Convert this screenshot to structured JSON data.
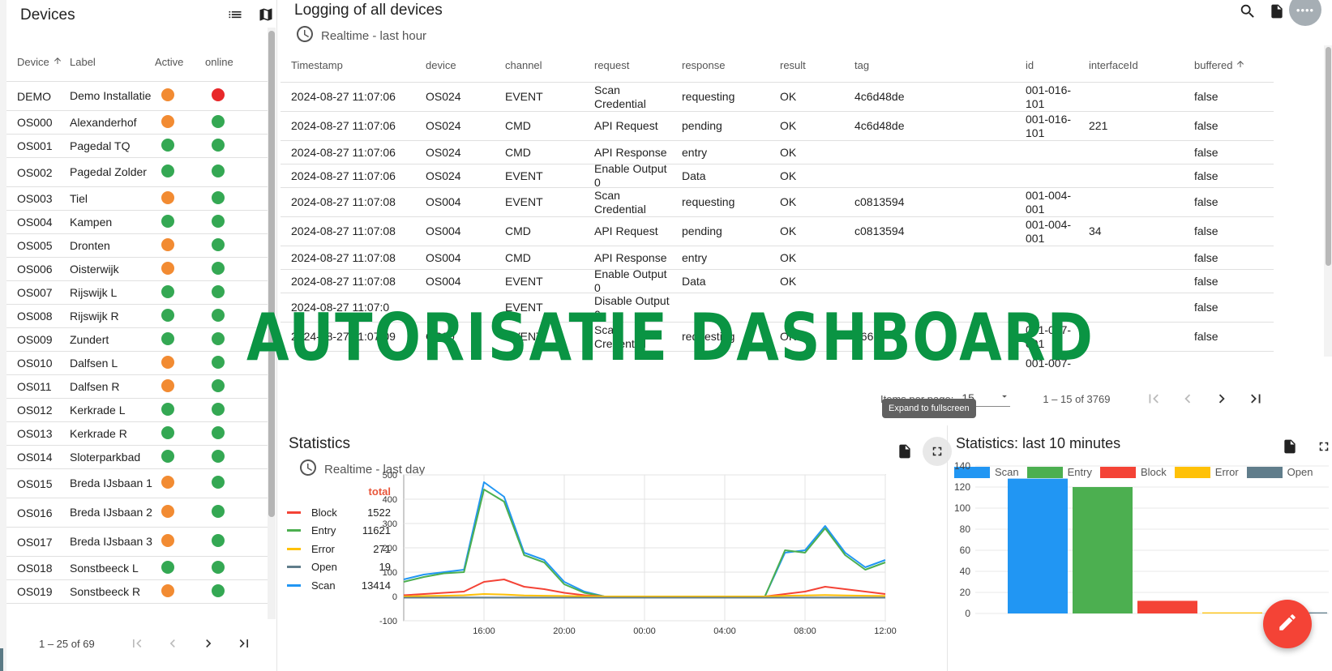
{
  "colors": {
    "orange": "#f28b32",
    "green": "#34a853",
    "red": "#e8282a",
    "scan": "#2196f3",
    "entry": "#4caf50",
    "block": "#f44336",
    "error": "#ffc107",
    "open": "#607d8b",
    "watermark": "#0a9443"
  },
  "devices": {
    "title": "Devices",
    "columns": {
      "device": "Device",
      "label": "Label",
      "active": "Active",
      "online": "online"
    },
    "rows": [
      {
        "device": "DEMO",
        "label": "Demo Installatie",
        "active": "orange",
        "online": "red"
      },
      {
        "device": "OS000",
        "label": "Alexanderhof",
        "active": "orange",
        "online": "green"
      },
      {
        "device": "OS001",
        "label": "Pagedal TQ",
        "active": "green",
        "online": "green"
      },
      {
        "device": "OS002",
        "label": "Pagedal Zolder",
        "active": "green",
        "online": "green"
      },
      {
        "device": "OS003",
        "label": "Tiel",
        "active": "orange",
        "online": "green"
      },
      {
        "device": "OS004",
        "label": "Kampen",
        "active": "green",
        "online": "green"
      },
      {
        "device": "OS005",
        "label": "Dronten",
        "active": "orange",
        "online": "green"
      },
      {
        "device": "OS006",
        "label": "Oisterwijk",
        "active": "orange",
        "online": "green"
      },
      {
        "device": "OS007",
        "label": "Rijswijk L",
        "active": "green",
        "online": "green"
      },
      {
        "device": "OS008",
        "label": "Rijswijk R",
        "active": "green",
        "online": "green"
      },
      {
        "device": "OS009",
        "label": "Zundert",
        "active": "green",
        "online": "green"
      },
      {
        "device": "OS010",
        "label": "Dalfsen L",
        "active": "orange",
        "online": "green"
      },
      {
        "device": "OS011",
        "label": "Dalfsen R",
        "active": "orange",
        "online": "green"
      },
      {
        "device": "OS012",
        "label": "Kerkrade L",
        "active": "green",
        "online": "green"
      },
      {
        "device": "OS013",
        "label": "Kerkrade R",
        "active": "green",
        "online": "green"
      },
      {
        "device": "OS014",
        "label": "Sloterparkbad",
        "active": "green",
        "online": "green"
      },
      {
        "device": "OS015",
        "label": "Breda IJsbaan 1",
        "active": "orange",
        "online": "green"
      },
      {
        "device": "OS016",
        "label": "Breda IJsbaan 2",
        "active": "orange",
        "online": "green"
      },
      {
        "device": "OS017",
        "label": "Breda IJsbaan 3",
        "active": "orange",
        "online": "green"
      },
      {
        "device": "OS018",
        "label": "Sonstbeeck L",
        "active": "green",
        "online": "green"
      },
      {
        "device": "OS019",
        "label": "Sonstbeeck R",
        "active": "orange",
        "online": "green"
      }
    ],
    "pager": "1 – 25 of 69"
  },
  "logging": {
    "title": "Logging of all devices",
    "realtime": "Realtime - last hour",
    "columns": {
      "timestamp": "Timestamp",
      "device": "device",
      "channel": "channel",
      "request": "request",
      "response": "response",
      "result": "result",
      "tag": "tag",
      "id": "id",
      "interfaceId": "interfaceId",
      "buffered": "buffered"
    },
    "rows": [
      {
        "timestamp": "2024-08-27 11:07:06",
        "device": "OS024",
        "channel": "EVENT",
        "request": "Scan Credential",
        "response": "requesting",
        "result": "OK",
        "tag": "4c6d48de",
        "id": "001-016-101",
        "interfaceId": "",
        "buffered": "false"
      },
      {
        "timestamp": "2024-08-27 11:07:06",
        "device": "OS024",
        "channel": "CMD",
        "request": "API Request",
        "response": "pending",
        "result": "OK",
        "tag": "4c6d48de",
        "id": "001-016-101",
        "interfaceId": "221",
        "buffered": "false"
      },
      {
        "timestamp": "2024-08-27 11:07:06",
        "device": "OS024",
        "channel": "CMD",
        "request": "API Response",
        "response": "entry",
        "result": "OK",
        "tag": "",
        "id": "",
        "interfaceId": "",
        "buffered": "false"
      },
      {
        "timestamp": "2024-08-27 11:07:06",
        "device": "OS024",
        "channel": "EVENT",
        "request": "Enable Output 0",
        "response": "Data",
        "result": "OK",
        "tag": "",
        "id": "",
        "interfaceId": "",
        "buffered": "false"
      },
      {
        "timestamp": "2024-08-27 11:07:08",
        "device": "OS004",
        "channel": "EVENT",
        "request": "Scan Credential",
        "response": "requesting",
        "result": "OK",
        "tag": "c0813594",
        "id": "001-004-001",
        "interfaceId": "",
        "buffered": "false"
      },
      {
        "timestamp": "2024-08-27 11:07:08",
        "device": "OS004",
        "channel": "CMD",
        "request": "API Request",
        "response": "pending",
        "result": "OK",
        "tag": "c0813594",
        "id": "001-004-001",
        "interfaceId": "34",
        "buffered": "false"
      },
      {
        "timestamp": "2024-08-27 11:07:08",
        "device": "OS004",
        "channel": "CMD",
        "request": "API Response",
        "response": "entry",
        "result": "OK",
        "tag": "",
        "id": "",
        "interfaceId": "",
        "buffered": "false"
      },
      {
        "timestamp": "2024-08-27 11:07:08",
        "device": "OS004",
        "channel": "EVENT",
        "request": "Enable Output 0",
        "response": "Data",
        "result": "OK",
        "tag": "",
        "id": "",
        "interfaceId": "",
        "buffered": "false"
      },
      {
        "timestamp": "2024-08-27 11:07:0",
        "device": "",
        "channel": "EVENT",
        "request": "Disable Output 0",
        "response": "",
        "result": "",
        "tag": "",
        "id": "",
        "interfaceId": "",
        "buffered": "false"
      },
      {
        "timestamp": "2024-08-27 11:07:09",
        "device": "OS00",
        "channel": "EVENT",
        "request": "Scan Credential",
        "response": "requesting",
        "result": "OK",
        "tag": "766",
        "id": "001-007-001",
        "interfaceId": "",
        "buffered": "false"
      },
      {
        "timestamp": "",
        "device": "",
        "channel": "",
        "request": "",
        "response": "",
        "result": "",
        "tag": "",
        "id": "001-007-",
        "interfaceId": "",
        "buffered": ""
      }
    ],
    "items_per_page_label": "Items per page:",
    "items_per_page": "15",
    "range": "1 – 15 of 3769",
    "tooltip": "Expand to fullscreen"
  },
  "statistics": {
    "title": "Statistics",
    "realtime": "Realtime - last day",
    "total_label": "total",
    "legend": [
      {
        "name": "Block",
        "total": "1522",
        "color": "#f44336"
      },
      {
        "name": "Entry",
        "total": "11621",
        "color": "#4caf50"
      },
      {
        "name": "Error",
        "total": "271",
        "color": "#ffc107"
      },
      {
        "name": "Open",
        "total": "19",
        "color": "#607d8b"
      },
      {
        "name": "Scan",
        "total": "13414",
        "color": "#2196f3"
      }
    ]
  },
  "stats10": {
    "title": "Statistics: last 10 minutes"
  },
  "watermark": "AUTORISATIE DASHBOARD",
  "topfab": "••••",
  "chart_data": [
    {
      "type": "line",
      "x": [
        "12:00",
        "13:00",
        "14:00",
        "15:00",
        "16:00",
        "17:00",
        "18:00",
        "19:00",
        "20:00",
        "21:00",
        "22:00",
        "23:00",
        "00:00",
        "01:00",
        "02:00",
        "03:00",
        "04:00",
        "05:00",
        "06:00",
        "07:00",
        "08:00",
        "09:00",
        "10:00",
        "11:00",
        "12:00"
      ],
      "xticks": [
        "16:00",
        "20:00",
        "00:00",
        "04:00",
        "08:00",
        "12:00"
      ],
      "ylim": [
        -100,
        500
      ],
      "yticks": [
        500,
        400,
        300,
        200,
        100,
        0,
        -100
      ],
      "series": [
        {
          "name": "Scan",
          "values": [
            70,
            90,
            100,
            110,
            470,
            410,
            180,
            150,
            60,
            20,
            0,
            0,
            0,
            0,
            0,
            0,
            0,
            0,
            0,
            180,
            190,
            290,
            180,
            120,
            150
          ]
        },
        {
          "name": "Entry",
          "values": [
            60,
            80,
            95,
            100,
            440,
            390,
            170,
            140,
            50,
            15,
            0,
            0,
            0,
            0,
            0,
            0,
            0,
            0,
            0,
            190,
            180,
            280,
            170,
            110,
            140
          ]
        },
        {
          "name": "Block",
          "values": [
            5,
            10,
            15,
            20,
            60,
            70,
            40,
            30,
            15,
            5,
            0,
            0,
            0,
            0,
            0,
            0,
            0,
            0,
            0,
            10,
            20,
            40,
            30,
            20,
            10
          ]
        },
        {
          "name": "Error",
          "values": [
            0,
            2,
            3,
            5,
            10,
            8,
            4,
            3,
            2,
            1,
            0,
            0,
            0,
            0,
            0,
            0,
            0,
            0,
            0,
            3,
            4,
            6,
            4,
            3,
            2
          ]
        },
        {
          "name": "Open",
          "values": [
            -5,
            -5,
            -5,
            -5,
            -5,
            -5,
            -5,
            -5,
            -5,
            -5,
            -5,
            -5,
            -5,
            -5,
            -5,
            -5,
            -5,
            -5,
            -5,
            -5,
            -5,
            -5,
            -5,
            -5,
            -5
          ]
        }
      ]
    },
    {
      "type": "bar",
      "title": "Statistics: last 10 minutes",
      "categories": [
        "Scan",
        "Entry",
        "Block",
        "Error",
        "Open"
      ],
      "values": [
        128,
        120,
        12,
        1,
        1
      ],
      "ylim": [
        0,
        140
      ],
      "yticks": [
        140,
        120,
        100,
        80,
        60,
        40,
        20,
        0
      ]
    }
  ]
}
